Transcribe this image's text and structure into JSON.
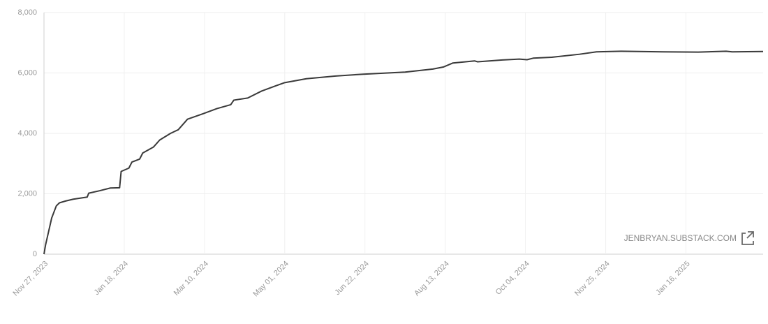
{
  "chart_data": {
    "type": "line",
    "color": "#3a3a3a",
    "grid": true,
    "watermark": "JENBRYAN.SUBSTACK.COM",
    "xlim": [
      "2023-11-27",
      "2025-03-07"
    ],
    "xticks": [
      {
        "value": "2023-11-27",
        "label": "Nov 27, 2023"
      },
      {
        "value": "2024-01-18",
        "label": "Jan 18, 2024"
      },
      {
        "value": "2024-03-10",
        "label": "Mar 10, 2024"
      },
      {
        "value": "2024-05-01",
        "label": "May 01, 2024"
      },
      {
        "value": "2024-06-22",
        "label": "Jun 22, 2024"
      },
      {
        "value": "2024-08-13",
        "label": "Aug 13, 2024"
      },
      {
        "value": "2024-10-04",
        "label": "Oct 04, 2024"
      },
      {
        "value": "2024-11-25",
        "label": "Nov 25, 2024"
      },
      {
        "value": "2025-01-16",
        "label": "Jan 16, 2025"
      }
    ],
    "ylim": [
      0,
      8000
    ],
    "yticks": [
      0,
      {
        "value": 2000,
        "label": "2,000"
      },
      {
        "value": 4000,
        "label": "4,000"
      },
      {
        "value": 6000,
        "label": "6,000"
      },
      {
        "value": 8000,
        "label": "8,000"
      }
    ],
    "x": [
      "2023-11-27",
      "2023-11-28",
      "2023-11-30",
      "2023-12-02",
      "2023-12-05",
      "2023-12-07",
      "2023-12-11",
      "2023-12-16",
      "2023-12-25",
      "2023-12-26",
      "2024-01-02",
      "2024-01-09",
      "2024-01-15",
      "2024-01-16",
      "2024-01-21",
      "2024-01-23",
      "2024-01-28",
      "2024-01-30",
      "2024-02-06",
      "2024-02-10",
      "2024-02-17",
      "2024-02-22",
      "2024-02-28",
      "2024-03-09",
      "2024-03-18",
      "2024-03-27",
      "2024-03-29",
      "2024-04-07",
      "2024-04-16",
      "2024-04-25",
      "2024-05-01",
      "2024-05-15",
      "2024-06-03",
      "2024-06-21",
      "2024-07-18",
      "2024-08-05",
      "2024-08-12",
      "2024-08-18",
      "2024-09-01",
      "2024-09-03",
      "2024-09-19",
      "2024-09-30",
      "2024-10-05",
      "2024-10-09",
      "2024-10-21",
      "2024-11-08",
      "2024-11-19",
      "2024-12-05",
      "2025-01-01",
      "2025-01-24",
      "2025-02-11",
      "2025-02-15",
      "2025-03-07"
    ],
    "values": [
      0,
      300,
      750,
      1200,
      1600,
      1700,
      1760,
      1820,
      1890,
      2020,
      2100,
      2190,
      2200,
      2740,
      2850,
      3050,
      3150,
      3350,
      3550,
      3780,
      4000,
      4120,
      4470,
      4650,
      4820,
      4950,
      5100,
      5170,
      5400,
      5570,
      5680,
      5810,
      5900,
      5960,
      6030,
      6130,
      6200,
      6330,
      6400,
      6370,
      6430,
      6460,
      6440,
      6490,
      6520,
      6620,
      6700,
      6720,
      6700,
      6690,
      6720,
      6700,
      6710
    ]
  }
}
